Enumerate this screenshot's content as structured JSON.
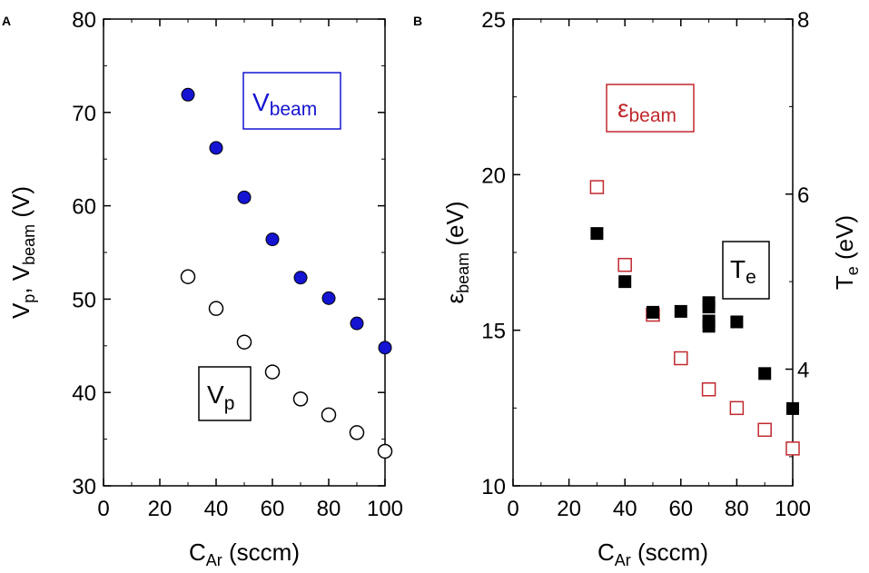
{
  "chart_data": [
    {
      "panel_label": "A",
      "type": "scatter",
      "xlabel": {
        "main": "C",
        "sub": "Ar",
        "rest": " (sccm)"
      },
      "ylabel": {
        "a": "V",
        "a_sub": "p",
        "sep": ", ",
        "b": "V",
        "b_sub": "beam",
        "rest": " (V)"
      },
      "xlim": [
        0,
        100
      ],
      "ylim": [
        30,
        80
      ],
      "xticks": [
        "0",
        "20",
        "40",
        "60",
        "80",
        "100"
      ],
      "yticks": [
        "30",
        "40",
        "50",
        "60",
        "70",
        "80"
      ],
      "series": [
        {
          "name": "V_beam",
          "marker": "filled-circle",
          "color": "#1414d2",
          "x": [
            30,
            40,
            50,
            60,
            70,
            80,
            90,
            100
          ],
          "y": [
            71.9,
            66.2,
            60.9,
            56.4,
            52.3,
            50.1,
            47.4,
            44.8
          ]
        },
        {
          "name": "V_p",
          "marker": "open-circle",
          "color": "#000000",
          "x": [
            30,
            40,
            50,
            60,
            70,
            80,
            90,
            100
          ],
          "y": [
            52.4,
            49.0,
            45.4,
            42.2,
            39.3,
            37.6,
            35.7,
            33.7
          ]
        }
      ],
      "legends": [
        {
          "main": "V",
          "sub": "beam",
          "color": "#1414d2",
          "position": "upper-middle"
        },
        {
          "main": "V",
          "sub": "p",
          "color": "#000000",
          "position": "lower-middle"
        }
      ]
    },
    {
      "panel_label": "B",
      "type": "scatter",
      "xlabel": {
        "main": "C",
        "sub": "Ar",
        "rest": " (sccm)"
      },
      "ylabel": {
        "a": "ε",
        "a_sub": "beam",
        "rest": " (eV)"
      },
      "y2label": {
        "a": "T",
        "a_sub": "e",
        "rest": " (eV)"
      },
      "xlim": [
        0,
        100
      ],
      "ylim": [
        10,
        25
      ],
      "y2lim": [
        2.667,
        8
      ],
      "xticks": [
        "0",
        "20",
        "40",
        "60",
        "80",
        "100"
      ],
      "yticks": [
        "10",
        "15",
        "20",
        "25"
      ],
      "y2ticks": [
        "4",
        "6",
        "8"
      ],
      "series": [
        {
          "name": "ε_beam",
          "axis": "left",
          "marker": "open-square",
          "color": "#c0282d",
          "x": [
            30,
            40,
            50,
            60,
            70,
            80,
            90,
            100
          ],
          "y": [
            19.6,
            17.1,
            15.5,
            14.1,
            13.1,
            12.5,
            11.8,
            11.2
          ]
        },
        {
          "name": "T_e",
          "axis": "right",
          "marker": "filled-square",
          "color": "#000000",
          "x": [
            30,
            40,
            50,
            60,
            70,
            70,
            70,
            70,
            80,
            90,
            100
          ],
          "y": [
            5.55,
            5.0,
            4.65,
            4.66,
            4.76,
            4.71,
            4.55,
            4.49,
            4.54,
            3.95,
            3.55
          ]
        }
      ],
      "legends": [
        {
          "main": "ε",
          "sub": "beam",
          "color": "#c0282d",
          "position": "upper-middle"
        },
        {
          "main": "T",
          "sub": "e",
          "color": "#000000",
          "position": "middle-right"
        }
      ]
    }
  ]
}
